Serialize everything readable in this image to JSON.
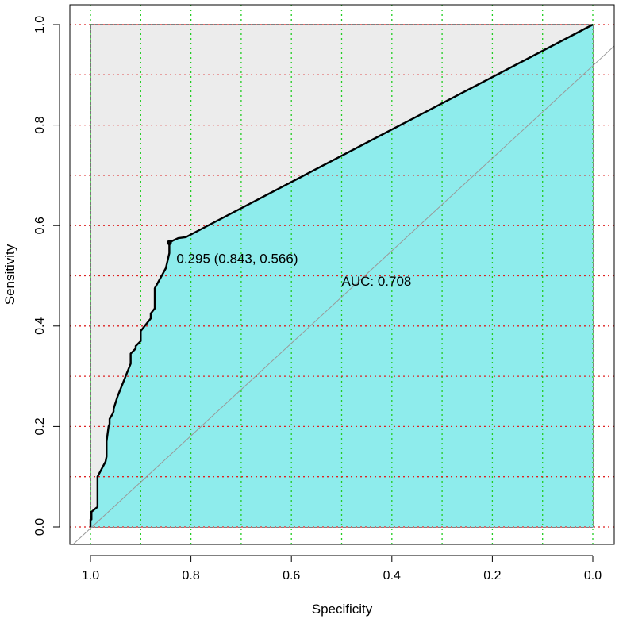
{
  "chart_data": {
    "type": "line",
    "subtype": "roc-curve",
    "title": "",
    "xlabel": "Specificity",
    "ylabel": "Sensitivity",
    "x_reversed": true,
    "xlim": [
      1.0,
      0.0
    ],
    "ylim": [
      0.0,
      1.0
    ],
    "x_ticks": [
      "1.0",
      "0.8",
      "0.6",
      "0.4",
      "0.2",
      "0.0"
    ],
    "y_ticks": [
      "0.0",
      "0.2",
      "0.4",
      "0.6",
      "0.8",
      "1.0"
    ],
    "minor_grid_x": [
      1.0,
      0.9,
      0.8,
      0.7,
      0.6,
      0.5,
      0.4,
      0.3,
      0.2,
      0.1,
      0.0
    ],
    "minor_grid_y": [
      0.0,
      0.1,
      0.2,
      0.3,
      0.4,
      0.5,
      0.6,
      0.7,
      0.8,
      0.9,
      1.0
    ],
    "grid_x_color": "#22cc22",
    "grid_y_color": "#dd2222",
    "auc_polygon_color": "#8eecec",
    "max_auc_polygon_color": "#ececec",
    "curve_color": "#000000",
    "diagonal_color": "#999999",
    "series": [
      {
        "specificity": [
          1.0,
          1.0,
          0.998,
          0.998,
          0.986,
          0.986,
          0.97,
          0.968,
          0.968,
          0.964,
          0.962,
          0.962,
          0.956,
          0.954,
          0.954,
          0.946,
          0.93,
          0.92,
          0.92,
          0.91,
          0.91,
          0.9,
          0.9,
          0.88,
          0.88,
          0.872,
          0.872,
          0.85,
          0.843,
          0.843,
          0.836,
          0.825,
          0.81,
          0.0
        ],
        "sensitivity": [
          0.0,
          0.015,
          0.015,
          0.03,
          0.04,
          0.1,
          0.13,
          0.14,
          0.17,
          0.2,
          0.205,
          0.215,
          0.225,
          0.23,
          0.235,
          0.26,
          0.3,
          0.325,
          0.345,
          0.355,
          0.36,
          0.37,
          0.39,
          0.415,
          0.425,
          0.435,
          0.475,
          0.515,
          0.545,
          0.566,
          0.57,
          0.575,
          0.577,
          1.0
        ]
      }
    ],
    "best_threshold": {
      "specificity": 0.843,
      "sensitivity": 0.566,
      "label": "0.295 (0.843, 0.566)"
    },
    "auc_label": "AUC: 0.708",
    "auc_label_position": {
      "specificity": 0.5,
      "sensitivity": 0.48
    }
  }
}
